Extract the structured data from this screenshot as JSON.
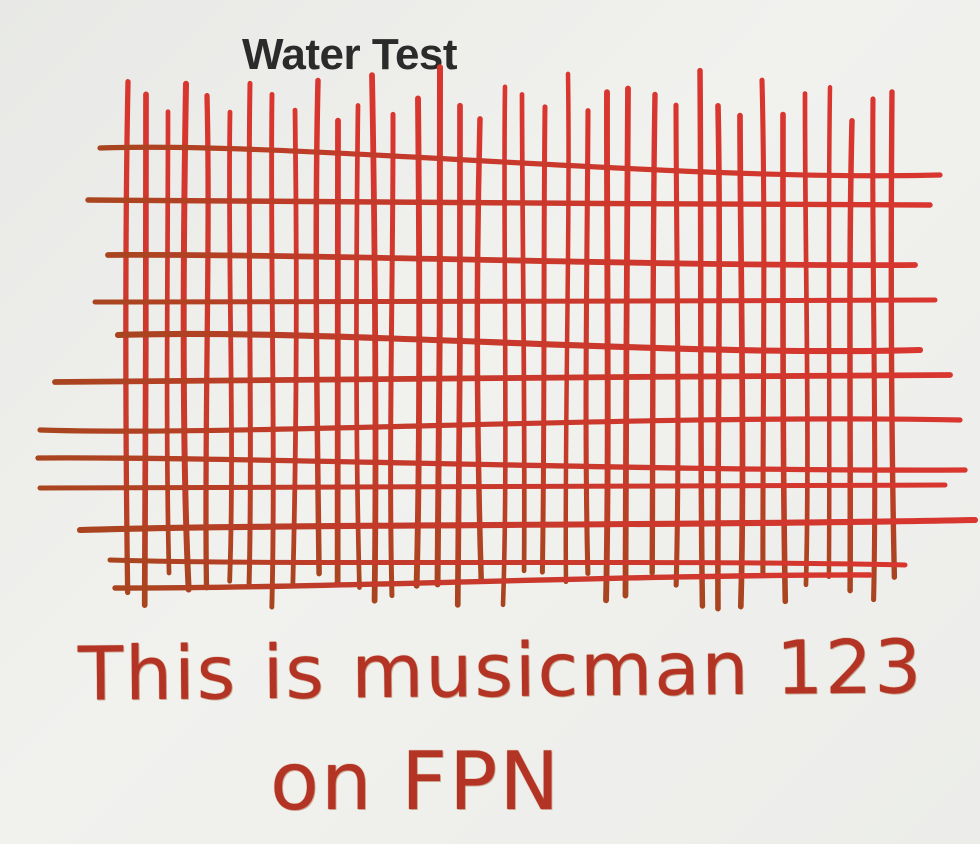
{
  "card": {
    "title": "Water Test",
    "handwriting_line_1": "This is musicman 123",
    "handwriting_line_2": "on FPN"
  },
  "colors": {
    "paper": "#eeeeeb",
    "ink_red": "#d8362f",
    "ink_brown": "#a8451f",
    "printed_text": "#2b2b2b"
  }
}
